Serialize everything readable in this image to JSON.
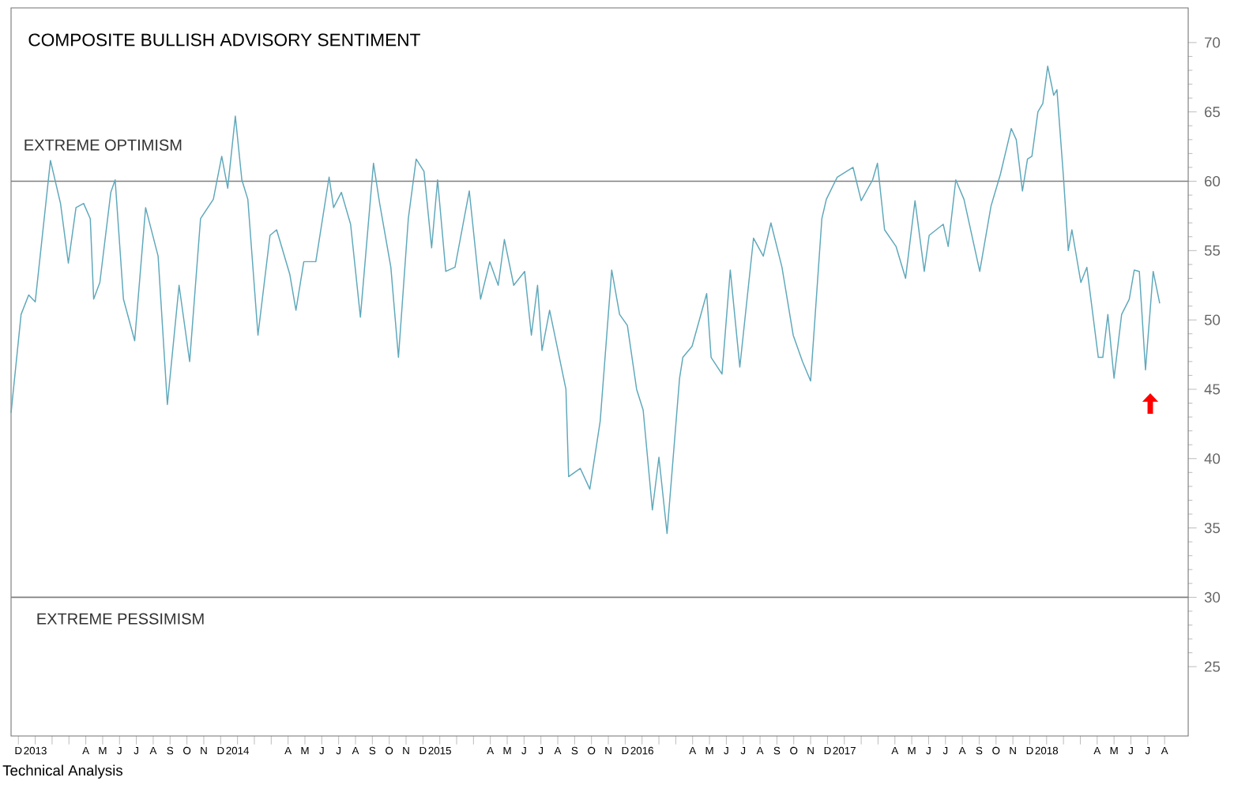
{
  "chart_data": {
    "type": "line",
    "title": "COMPOSITE BULLISH ADVISORY SENTIMENT",
    "color": "#5fa8bb",
    "marker": "none",
    "x": [
      "2012-11-18",
      "2012-12-06",
      "2012-12-20",
      "2013-01-01",
      "2013-01-29",
      "2013-02-15",
      "2013-02-28",
      "2013-03-14",
      "2013-03-28",
      "2013-04-09",
      "2013-04-15",
      "2013-04-26",
      "2013-05-16",
      "2013-05-24",
      "2013-06-08",
      "2013-06-28",
      "2013-07-18",
      "2013-08-10",
      "2013-08-27",
      "2013-09-17",
      "2013-10-06",
      "2013-10-26",
      "2013-11-18",
      "2013-12-03",
      "2013-12-14",
      "2013-12-28",
      "2014-01-09",
      "2014-01-20",
      "2014-02-07",
      "2014-02-27",
      "2014-03-11",
      "2014-04-04",
      "2014-04-15",
      "2014-04-29",
      "2014-05-21",
      "2014-06-14",
      "2014-06-22",
      "2014-07-06",
      "2014-07-23",
      "2014-08-10",
      "2014-09-03",
      "2014-09-14",
      "2014-10-04",
      "2014-10-18",
      "2014-11-05",
      "2014-11-19",
      "2014-12-03",
      "2014-12-17",
      "2014-12-28",
      "2015-01-12",
      "2015-01-29",
      "2015-02-22",
      "2015-03-14",
      "2015-03-31",
      "2015-04-15",
      "2015-04-26",
      "2015-05-13",
      "2015-06-02",
      "2015-06-14",
      "2015-06-25",
      "2015-07-03",
      "2015-07-17",
      "2015-08-16",
      "2015-08-21",
      "2015-09-11",
      "2015-09-28",
      "2015-10-17",
      "2015-11-07",
      "2015-11-21",
      "2015-12-05",
      "2015-12-22",
      "2016-01-03",
      "2016-01-20",
      "2016-02-01",
      "2016-02-15",
      "2016-03-08",
      "2016-03-14",
      "2016-03-31",
      "2016-04-26",
      "2016-05-04",
      "2016-05-24",
      "2016-06-08",
      "2016-06-25",
      "2016-07-20",
      "2016-08-07",
      "2016-08-21",
      "2016-09-10",
      "2016-09-30",
      "2016-10-17",
      "2016-11-01",
      "2016-11-21",
      "2016-11-29",
      "2016-12-19",
      "2017-01-17",
      "2017-02-01",
      "2017-02-20",
      "2017-02-28",
      "2017-03-13",
      "2017-04-03",
      "2017-04-20",
      "2017-05-07",
      "2017-05-24",
      "2017-06-02",
      "2017-06-27",
      "2017-07-06",
      "2017-07-20",
      "2017-08-04",
      "2017-09-02",
      "2017-09-22",
      "2017-10-09",
      "2017-10-29",
      "2017-11-07",
      "2017-11-18",
      "2017-11-27",
      "2017-12-05",
      "2017-12-16",
      "2017-12-25",
      "2018-01-03",
      "2018-01-14",
      "2018-01-20",
      "2018-02-01",
      "2018-02-09",
      "2018-02-15",
      "2018-03-02",
      "2018-03-13",
      "2018-04-03",
      "2018-04-11",
      "2018-04-20",
      "2018-05-01",
      "2018-05-15",
      "2018-05-29",
      "2018-06-07",
      "2018-06-16",
      "2018-06-27",
      "2018-07-11",
      "2018-07-23"
    ],
    "values": [
      43.3,
      50.4,
      51.8,
      51.3,
      61.5,
      58.4,
      54.1,
      58.1,
      58.4,
      57.3,
      51.5,
      52.7,
      59.2,
      60.1,
      51.5,
      48.5,
      58.1,
      54.6,
      43.9,
      52.5,
      47.0,
      57.3,
      58.7,
      61.8,
      59.5,
      64.7,
      60.1,
      58.7,
      48.9,
      56.1,
      56.5,
      53.3,
      50.7,
      54.2,
      54.2,
      60.3,
      58.1,
      59.2,
      56.9,
      50.2,
      61.3,
      58.4,
      53.8,
      47.3,
      57.3,
      61.6,
      60.7,
      55.2,
      60.1,
      53.5,
      53.8,
      59.3,
      51.5,
      54.2,
      52.5,
      55.8,
      52.5,
      53.5,
      48.9,
      52.5,
      47.8,
      50.7,
      45.0,
      38.7,
      39.3,
      37.8,
      42.7,
      53.6,
      50.4,
      49.6,
      45.0,
      43.5,
      36.3,
      40.1,
      34.6,
      45.8,
      47.3,
      48.1,
      51.9,
      47.3,
      46.1,
      53.6,
      46.6,
      55.9,
      54.6,
      57.0,
      53.8,
      48.9,
      47.0,
      45.6,
      57.3,
      58.7,
      60.3,
      61.0,
      58.6,
      60.1,
      61.3,
      56.5,
      55.3,
      53.0,
      58.6,
      53.5,
      56.1,
      56.9,
      55.3,
      60.1,
      58.7,
      53.5,
      58.2,
      60.5,
      63.8,
      63.0,
      59.3,
      61.6,
      61.8,
      65.0,
      65.6,
      68.3,
      66.2,
      66.6,
      60.3,
      55.0,
      56.5,
      52.7,
      53.8,
      47.3,
      47.3,
      50.4,
      45.8,
      50.4,
      51.5,
      53.6,
      53.5,
      46.4,
      53.5,
      51.2
    ],
    "xlim": [
      "2012-11-18",
      "2018-09-13"
    ],
    "xticks": [
      {
        "value": "2012-12",
        "label": "D"
      },
      {
        "value": "2013-01",
        "label": "2013"
      },
      {
        "value": "2013-02",
        "label": null
      },
      {
        "value": "2013-03",
        "label": null
      },
      {
        "value": "2013-04",
        "label": "A"
      },
      {
        "value": "2013-05",
        "label": "M"
      },
      {
        "value": "2013-06",
        "label": "J"
      },
      {
        "value": "2013-07",
        "label": "J"
      },
      {
        "value": "2013-08",
        "label": "A"
      },
      {
        "value": "2013-09",
        "label": "S"
      },
      {
        "value": "2013-10",
        "label": "O"
      },
      {
        "value": "2013-11",
        "label": "N"
      },
      {
        "value": "2013-12",
        "label": "D"
      },
      {
        "value": "2014-01",
        "label": "2014"
      },
      {
        "value": "2014-02",
        "label": null
      },
      {
        "value": "2014-03",
        "label": null
      },
      {
        "value": "2014-04",
        "label": "A"
      },
      {
        "value": "2014-05",
        "label": "M"
      },
      {
        "value": "2014-06",
        "label": "J"
      },
      {
        "value": "2014-07",
        "label": "J"
      },
      {
        "value": "2014-08",
        "label": "A"
      },
      {
        "value": "2014-09",
        "label": "S"
      },
      {
        "value": "2014-10",
        "label": "O"
      },
      {
        "value": "2014-11",
        "label": "N"
      },
      {
        "value": "2014-12",
        "label": "D"
      },
      {
        "value": "2015-01",
        "label": "2015"
      },
      {
        "value": "2015-02",
        "label": null
      },
      {
        "value": "2015-03",
        "label": null
      },
      {
        "value": "2015-04",
        "label": "A"
      },
      {
        "value": "2015-05",
        "label": "M"
      },
      {
        "value": "2015-06",
        "label": "J"
      },
      {
        "value": "2015-07",
        "label": "J"
      },
      {
        "value": "2015-08",
        "label": "A"
      },
      {
        "value": "2015-09",
        "label": "S"
      },
      {
        "value": "2015-10",
        "label": "O"
      },
      {
        "value": "2015-11",
        "label": "N"
      },
      {
        "value": "2015-12",
        "label": "D"
      },
      {
        "value": "2016-01",
        "label": "2016"
      },
      {
        "value": "2016-02",
        "label": null
      },
      {
        "value": "2016-03",
        "label": null
      },
      {
        "value": "2016-04",
        "label": "A"
      },
      {
        "value": "2016-05",
        "label": "M"
      },
      {
        "value": "2016-06",
        "label": "J"
      },
      {
        "value": "2016-07",
        "label": "J"
      },
      {
        "value": "2016-08",
        "label": "A"
      },
      {
        "value": "2016-09",
        "label": "S"
      },
      {
        "value": "2016-10",
        "label": "O"
      },
      {
        "value": "2016-11",
        "label": "N"
      },
      {
        "value": "2016-12",
        "label": "D"
      },
      {
        "value": "2017-01",
        "label": "2017"
      },
      {
        "value": "2017-02",
        "label": null
      },
      {
        "value": "2017-03",
        "label": null
      },
      {
        "value": "2017-04",
        "label": "A"
      },
      {
        "value": "2017-05",
        "label": "M"
      },
      {
        "value": "2017-06",
        "label": "J"
      },
      {
        "value": "2017-07",
        "label": "J"
      },
      {
        "value": "2017-08",
        "label": "A"
      },
      {
        "value": "2017-09",
        "label": "S"
      },
      {
        "value": "2017-10",
        "label": "O"
      },
      {
        "value": "2017-11",
        "label": "N"
      },
      {
        "value": "2017-12",
        "label": "D"
      },
      {
        "value": "2018-01",
        "label": "2018"
      },
      {
        "value": "2018-02",
        "label": null
      },
      {
        "value": "2018-03",
        "label": null
      },
      {
        "value": "2018-04",
        "label": "A"
      },
      {
        "value": "2018-05",
        "label": "M"
      },
      {
        "value": "2018-06",
        "label": "J"
      },
      {
        "value": "2018-07",
        "label": "J"
      },
      {
        "value": "2018-08",
        "label": "A"
      }
    ],
    "ylim": [
      20,
      72.5
    ],
    "yticks": [
      25,
      30,
      35,
      40,
      45,
      50,
      55,
      60,
      65,
      70
    ],
    "ref_lines": [
      {
        "axis": "y",
        "value": 60,
        "label": "EXTREME OPTIMISM",
        "color": "#808080"
      },
      {
        "axis": "y",
        "value": 30,
        "label": "EXTREME PESSIMISM",
        "color": "#808080"
      }
    ],
    "annotations": [
      "Technical Analysis"
    ]
  }
}
